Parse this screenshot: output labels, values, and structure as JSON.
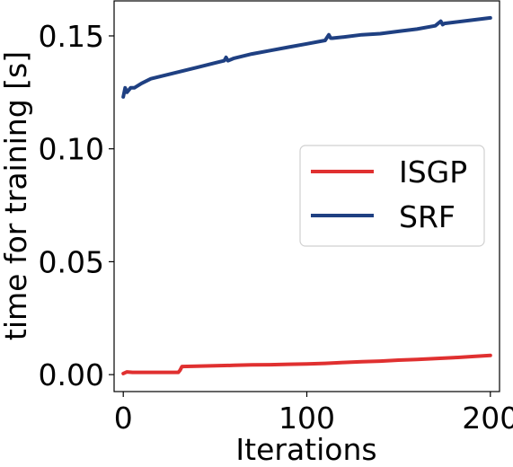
{
  "chart_data": {
    "type": "line",
    "title": "",
    "xlabel": "Iterations",
    "ylabel": "time for training [s]",
    "xlim": [
      -5,
      205
    ],
    "ylim": [
      -0.0075,
      0.1655
    ],
    "xticks": [
      0,
      100,
      200
    ],
    "xtick_labels": [
      "0",
      "100",
      "200"
    ],
    "yticks": [
      0.0,
      0.05,
      0.1,
      0.15
    ],
    "ytick_labels": [
      "0.00",
      "0.05",
      "0.10",
      "0.15"
    ],
    "grid": false,
    "legend": {
      "placement": "center-right",
      "entries": [
        "ISGP",
        "SRF"
      ]
    },
    "series": [
      {
        "name": "ISGP",
        "color": "#e03030",
        "x": [
          0,
          2,
          5,
          10,
          20,
          30,
          31,
          32,
          40,
          50,
          60,
          70,
          80,
          90,
          100,
          110,
          120,
          130,
          140,
          150,
          160,
          170,
          180,
          190,
          200
        ],
        "y": [
          0.0005,
          0.0012,
          0.001,
          0.001,
          0.001,
          0.001,
          0.002,
          0.0036,
          0.0037,
          0.0039,
          0.0041,
          0.0043,
          0.0044,
          0.0046,
          0.0047,
          0.005,
          0.0054,
          0.0057,
          0.006,
          0.0064,
          0.0067,
          0.0071,
          0.0075,
          0.008,
          0.0085
        ]
      },
      {
        "name": "SRF",
        "color": "#1f4082",
        "x": [
          0,
          1,
          2,
          4,
          6,
          10,
          15,
          20,
          25,
          30,
          40,
          50,
          55,
          56,
          57,
          60,
          70,
          80,
          90,
          100,
          110,
          112,
          113,
          114,
          120,
          130,
          140,
          150,
          160,
          170,
          173,
          174,
          175,
          180,
          190,
          200
        ],
        "y": [
          0.123,
          0.127,
          0.125,
          0.127,
          0.127,
          0.129,
          0.131,
          0.132,
          0.133,
          0.134,
          0.136,
          0.138,
          0.139,
          0.1405,
          0.139,
          0.14,
          0.142,
          0.1435,
          0.145,
          0.1465,
          0.148,
          0.1505,
          0.149,
          0.149,
          0.1495,
          0.1505,
          0.151,
          0.152,
          0.153,
          0.1545,
          0.1565,
          0.155,
          0.1555,
          0.156,
          0.157,
          0.158
        ]
      }
    ]
  }
}
